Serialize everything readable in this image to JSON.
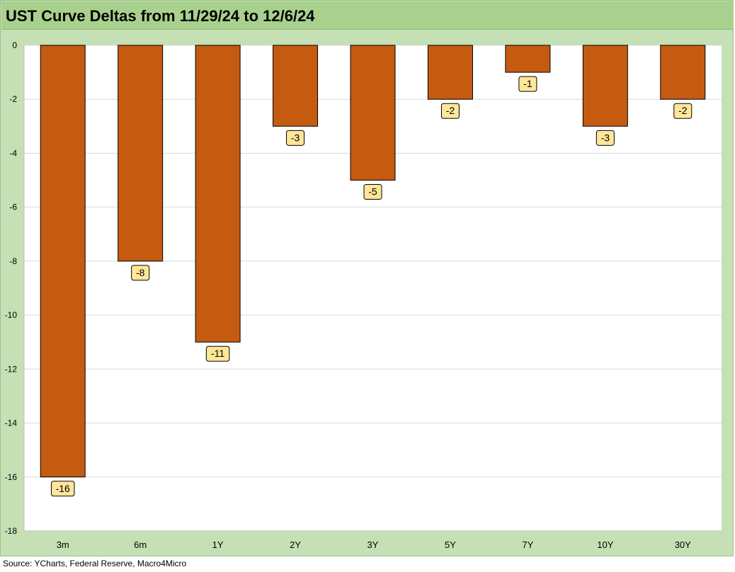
{
  "title": "UST Curve Deltas from 11/29/24 to 12/6/24",
  "source": "Source: YCharts, Federal Reserve, Macro4Micro",
  "colors": {
    "bar": "#c55a11",
    "bar_border": "#000000",
    "label_bg": "#ffe699",
    "plot_bg": "#ffffff",
    "frame_bg": "#c4e0b4",
    "title_bg": "#a9d18e",
    "grid": "#d9d9d9"
  },
  "chart_data": {
    "type": "bar",
    "title": "UST Curve Deltas from 11/29/24 to 12/6/24",
    "xlabel": "",
    "ylabel": "",
    "categories": [
      "3m",
      "6m",
      "1Y",
      "2Y",
      "3Y",
      "5Y",
      "7Y",
      "10Y",
      "30Y"
    ],
    "values": [
      -16,
      -8,
      -11,
      -3,
      -5,
      -2,
      -1,
      -3,
      -2
    ],
    "ylim": [
      -18,
      0
    ],
    "yticks": [
      0,
      -2,
      -4,
      -6,
      -8,
      -10,
      -12,
      -14,
      -16,
      -18
    ],
    "grid": true,
    "data_labels": true,
    "legend": "none"
  }
}
